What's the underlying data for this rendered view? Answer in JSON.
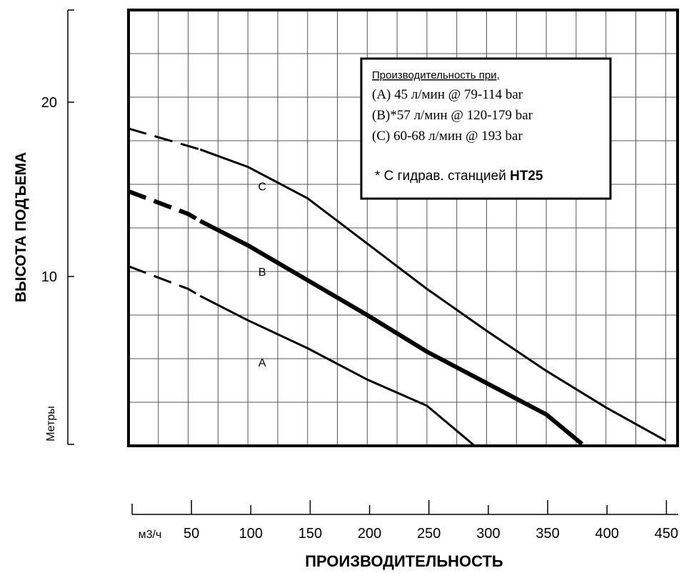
{
  "chart_data": {
    "type": "line",
    "ylabel": "ВЫСОТА ПОДЪЕМА",
    "y_unit_label": "Метры",
    "y_ticks": [
      10,
      20
    ],
    "ylim": [
      0,
      25
    ],
    "xlabel": "ПРОИЗВОДИТЕЛЬНОСТЬ",
    "x_unit_label": "м3/ч",
    "x_ticks": [
      50,
      100,
      150,
      200,
      250,
      300,
      350,
      400,
      450
    ],
    "xlim": [
      0,
      460
    ],
    "grid": true,
    "legend_box": {
      "title": "Производительность при,",
      "lines": [
        "(A) 45 л/мин @ 79-114 bar",
        "(B)*57 л/мин @ 120-179 bar",
        "(C) 60-68 л/мин @ 193 bar"
      ],
      "footnote_prefix": "*  С гидрав. станцией ",
      "footnote_bold": "HT25"
    },
    "series": [
      {
        "name": "C",
        "dashed_points": [
          [
            0,
            18.2
          ],
          [
            50,
            17.2
          ],
          [
            60,
            17.0
          ]
        ],
        "solid_points": [
          [
            60,
            17.0
          ],
          [
            100,
            16.0
          ],
          [
            150,
            14.2
          ],
          [
            200,
            11.6
          ],
          [
            250,
            9.0
          ],
          [
            300,
            6.6
          ],
          [
            350,
            4.3
          ],
          [
            400,
            2.2
          ],
          [
            450,
            0.3
          ]
        ]
      },
      {
        "name": "B",
        "dashed_points": [
          [
            0,
            14.6
          ],
          [
            50,
            13.3
          ],
          [
            60,
            12.9
          ]
        ],
        "solid_points": [
          [
            60,
            12.9
          ],
          [
            100,
            11.5
          ],
          [
            150,
            9.5
          ],
          [
            200,
            7.5
          ],
          [
            250,
            5.4
          ],
          [
            300,
            3.6
          ],
          [
            350,
            1.8
          ],
          [
            380,
            0.1
          ]
        ]
      },
      {
        "name": "A",
        "dashed_points": [
          [
            0,
            10.3
          ],
          [
            50,
            9.0
          ],
          [
            60,
            8.6
          ]
        ],
        "solid_points": [
          [
            60,
            8.6
          ],
          [
            100,
            7.2
          ],
          [
            150,
            5.6
          ],
          [
            200,
            3.8
          ],
          [
            250,
            2.3
          ],
          [
            290,
            0.0
          ]
        ]
      }
    ],
    "curve_labels": [
      {
        "text": "C",
        "x": 112,
        "y": 14.9
      },
      {
        "text": "B",
        "x": 112,
        "y": 10.0
      },
      {
        "text": "A",
        "x": 112,
        "y": 4.8
      }
    ]
  }
}
